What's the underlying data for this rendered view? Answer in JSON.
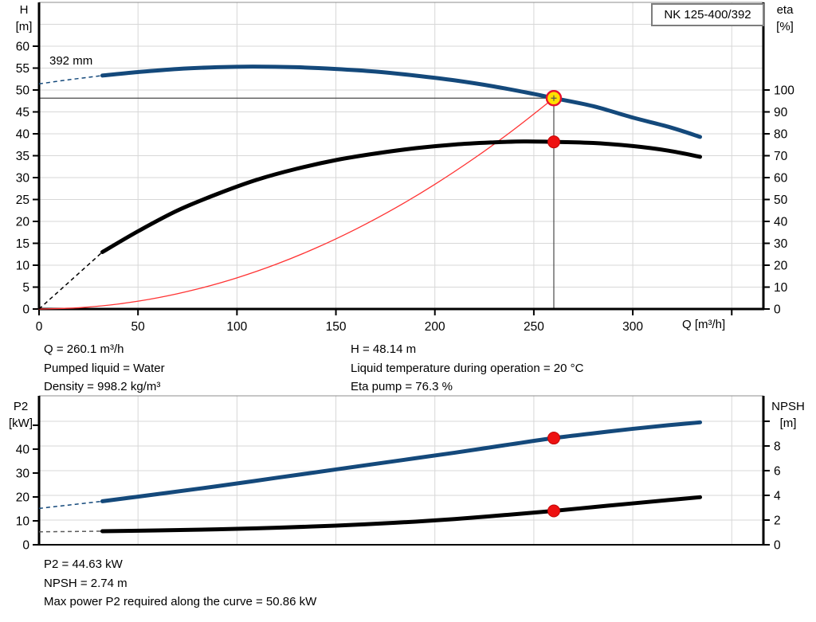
{
  "title_box": "NK 125-400/392",
  "curve_label_392": "392 mm",
  "axis_titles": {
    "h1": "H",
    "h2": "[m]",
    "eta1": "eta",
    "eta2": "[%]",
    "q": "Q [m³/h]",
    "p21": "P2",
    "p22": "[kW]",
    "npsh1": "NPSH",
    "npsh2": "[m]"
  },
  "info_mid_left": [
    "Q = 260.1 m³/h",
    "Pumped liquid = Water",
    "Density = 998.2 kg/m³"
  ],
  "info_mid_right": [
    "H = 48.14 m",
    "Liquid temperature during operation = 20 °C",
    "Eta pump = 76.3 %"
  ],
  "info_bottom": [
    "P2 = 44.63 kW",
    "NPSH = 2.74 m",
    "Max power P2 required along the curve = 50.86 kW"
  ],
  "operating_point": {
    "q_m3h": 260.1,
    "h_m": 48.14,
    "eta_pct": 76.3,
    "p2_kw": 44.63,
    "npsh_m": 2.74,
    "max_p2_kw": 50.86
  },
  "colors": {
    "blue": "#14497b",
    "black": "#000000",
    "red": "#ff3333",
    "gray": "#5a5a5a",
    "red_dot": "#ee1111",
    "marker_yellow": "#ffe000",
    "marker_stroke": "#e8112d",
    "grid": "#d7d7d7",
    "axis": "#000000",
    "border_top": "#8c8c8c",
    "crosshair": "#4a4a4a"
  },
  "chart_data": [
    {
      "type": "line",
      "title": "NK 125-400/392",
      "x": {
        "label": "Q [m³/h]",
        "range": [
          0,
          366
        ],
        "ticks": [
          0,
          50,
          100,
          150,
          200,
          250,
          300
        ],
        "unlabeled_ticks": [
          350
        ]
      },
      "y_left": {
        "label": "H [m]",
        "range": [
          0,
          70
        ],
        "ticks": [
          0,
          5,
          10,
          15,
          20,
          25,
          30,
          35,
          40,
          45,
          50,
          55,
          60
        ],
        "unlabeled_ticks": []
      },
      "y_right": {
        "label": "eta [%]",
        "range": [
          0,
          140
        ],
        "ticks": [
          0,
          10,
          20,
          30,
          40,
          50,
          60,
          70,
          80,
          90,
          100
        ],
        "unlabeled_ticks": []
      },
      "grid_v": [
        50,
        100,
        150,
        200,
        250,
        300,
        350
      ],
      "grid_h": {
        "axis": "left",
        "values": [
          5,
          10,
          15,
          20,
          25,
          30,
          35,
          40,
          45,
          50,
          55,
          60,
          65
        ]
      },
      "series": [
        {
          "name": "system-curve",
          "axis": "left",
          "color_key": "red",
          "width": 1.3,
          "interactable": false,
          "dashed_points": [],
          "points": [
            [
              0,
              0
            ],
            [
              20,
              0.28
            ],
            [
              40,
              1.14
            ],
            [
              60,
              2.56
            ],
            [
              80,
              4.56
            ],
            [
              100,
              7.12
            ],
            [
              120,
              10.25
            ],
            [
              140,
              13.95
            ],
            [
              160,
              18.22
            ],
            [
              180,
              23.06
            ],
            [
              200,
              28.47
            ],
            [
              220,
              34.45
            ],
            [
              240,
              41.0
            ],
            [
              260.1,
              48.14
            ]
          ]
        },
        {
          "name": "efficiency-curve",
          "axis": "right",
          "color_key": "black",
          "width": 5,
          "interactable": true,
          "dashed_points": [
            [
              0,
              0
            ],
            [
              16,
              13
            ],
            [
              32,
              26
            ]
          ],
          "points": [
            [
              32,
              26
            ],
            [
              50,
              35.5
            ],
            [
              70,
              45
            ],
            [
              90,
              52.5
            ],
            [
              110,
              59
            ],
            [
              130,
              64
            ],
            [
              150,
              68
            ],
            [
              170,
              71
            ],
            [
              190,
              73.4
            ],
            [
              210,
              75.1
            ],
            [
              230,
              76.1
            ],
            [
              245,
              76.5
            ],
            [
              260.1,
              76.3
            ],
            [
              280,
              75.8
            ],
            [
              300,
              74.4
            ],
            [
              318,
              72.3
            ],
            [
              334,
              69.5
            ]
          ]
        },
        {
          "name": "head-curve-392mm",
          "axis": "left",
          "color_key": "blue",
          "width": 5,
          "interactable": true,
          "dashed_points": [
            [
              0,
              51.4
            ],
            [
              16,
              52.4
            ],
            [
              32,
              53.3
            ]
          ],
          "points": [
            [
              32,
              53.3
            ],
            [
              50,
              54.1
            ],
            [
              70,
              54.8
            ],
            [
              90,
              55.2
            ],
            [
              108,
              55.35
            ],
            [
              130,
              55.2
            ],
            [
              150,
              54.8
            ],
            [
              170,
              54.2
            ],
            [
              190,
              53.3
            ],
            [
              210,
              52.2
            ],
            [
              230,
              50.8
            ],
            [
              250,
              49.1
            ],
            [
              260.1,
              48.14
            ],
            [
              280,
              46.3
            ],
            [
              300,
              43.7
            ],
            [
              318,
              41.6
            ],
            [
              334,
              39.3
            ]
          ]
        }
      ],
      "crosshair": {
        "q": 260.1,
        "value": 48.14,
        "axis": "left"
      },
      "markers": [
        {
          "name": "efficiency-point",
          "axis": "right",
          "q": 260.1,
          "value": 76.3,
          "style": "dot"
        },
        {
          "name": "duty-point",
          "axis": "left",
          "q": 260.1,
          "value": 48.14,
          "style": "duty"
        }
      ]
    },
    {
      "type": "line",
      "title": "",
      "x": {
        "label": "",
        "range": [
          0,
          366
        ],
        "ticks": [],
        "unlabeled_ticks": []
      },
      "y_left": {
        "label": "P2 [kW]",
        "range": [
          0,
          62.3
        ],
        "ticks": [
          0,
          10,
          20,
          30,
          40
        ],
        "unlabeled_ticks": [
          50
        ]
      },
      "y_right": {
        "label": "NPSH [m]",
        "range": [
          0,
          12.06
        ],
        "ticks": [
          0,
          2,
          4,
          6,
          8
        ],
        "unlabeled_ticks": [
          10
        ]
      },
      "grid_v": [
        50,
        100,
        150,
        200,
        250,
        300,
        350
      ],
      "grid_h": {
        "axis": "right",
        "values": [
          2,
          4,
          6,
          8,
          10
        ]
      },
      "series": [
        {
          "name": "npsh-curve",
          "axis": "right",
          "color_key": "black",
          "width": 5,
          "interactable": true,
          "dash_color_key": "gray",
          "dashed_points": [
            [
              0,
              1.05
            ],
            [
              16,
              1.07
            ],
            [
              32,
              1.1
            ]
          ],
          "points": [
            [
              32,
              1.1
            ],
            [
              60,
              1.16
            ],
            [
              90,
              1.25
            ],
            [
              120,
              1.38
            ],
            [
              150,
              1.55
            ],
            [
              180,
              1.78
            ],
            [
              210,
              2.08
            ],
            [
              235,
              2.4
            ],
            [
              260.1,
              2.74
            ],
            [
              280,
              3.05
            ],
            [
              300,
              3.35
            ],
            [
              318,
              3.62
            ],
            [
              334,
              3.85
            ]
          ]
        },
        {
          "name": "p2-curve",
          "axis": "left",
          "color_key": "blue",
          "width": 5,
          "interactable": true,
          "dashed_points": [
            [
              0,
              15.2
            ],
            [
              16,
              16.7
            ],
            [
              32,
              18.2
            ]
          ],
          "points": [
            [
              32,
              18.2
            ],
            [
              60,
              21.2
            ],
            [
              90,
              24.5
            ],
            [
              120,
              28.0
            ],
            [
              150,
              31.5
            ],
            [
              180,
              35.0
            ],
            [
              210,
              38.5
            ],
            [
              235,
              41.6
            ],
            [
              260.1,
              44.63
            ],
            [
              280,
              46.6
            ],
            [
              300,
              48.5
            ],
            [
              318,
              50.0
            ],
            [
              334,
              51.2
            ]
          ]
        }
      ],
      "crosshair": null,
      "markers": [
        {
          "name": "p2-point",
          "axis": "left",
          "q": 260.1,
          "value": 44.63,
          "style": "dot"
        },
        {
          "name": "npsh-point",
          "axis": "right",
          "q": 260.1,
          "value": 2.74,
          "style": "dot"
        }
      ]
    }
  ]
}
